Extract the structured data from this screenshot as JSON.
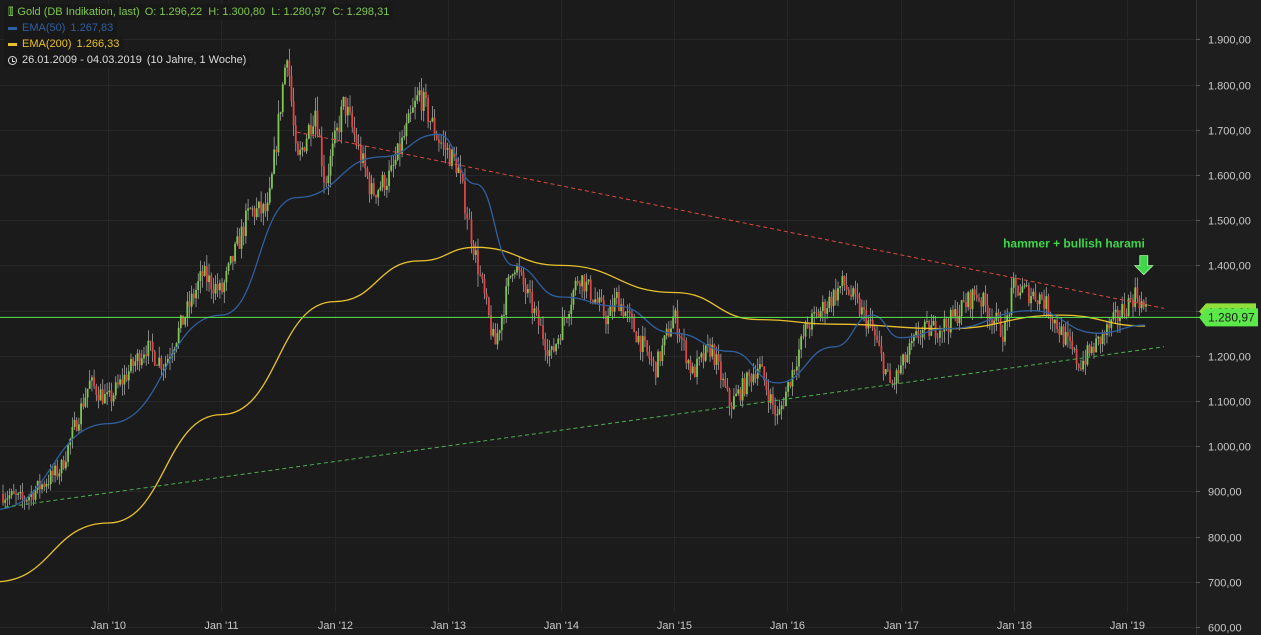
{
  "legend": {
    "instrument": "Gold (DB Indikation, last)",
    "ohlc": "O: 1.296,22  H: 1.300,80  L: 1.280,97  C: 1.298,31",
    "ema50_label": "EMA(50)",
    "ema50_value": "1.267,83",
    "ema200_label": "EMA(200)",
    "ema200_value": "1.266,33",
    "range": "26.01.2009 - 04.03.2019",
    "range_detail": "(10 Jahre, 1 Woche)"
  },
  "price_tag": "1.280,97",
  "price_tag_behind": "1.298,31",
  "colors": {
    "background": "#1b1b1b",
    "grid": "#262626",
    "up": "#7ec850",
    "down": "#e04545",
    "ema50": "#2f5f9e",
    "ema200": "#e8c12c",
    "support_line": "#4caf50",
    "resistance_line": "#d84b3f",
    "horizontal_line": "#5de84a",
    "annotation": "#3fd64b",
    "axis_text": "#c8c8c8"
  },
  "chart_data": {
    "type": "candlestick",
    "y_axis": {
      "min": 600,
      "max": 1950,
      "ticks": [
        600,
        700,
        800,
        900,
        1000,
        1100,
        1200,
        1300,
        1400,
        1500,
        1600,
        1700,
        1800,
        1900
      ],
      "tick_labels": [
        "600,00",
        "700,00",
        "800,00",
        "900,00",
        "1.000,00",
        "1.100,00",
        "1.200,00",
        "1.300,00",
        "1.400,00",
        "1.500,00",
        "1.600,00",
        "1.700,00",
        "1.800,00",
        "1.900,00"
      ],
      "position": "right"
    },
    "x_axis": {
      "start": "2009-01-26",
      "end": "2019-03-04",
      "ticks": [
        "2010-01",
        "2011-01",
        "2012-01",
        "2013-01",
        "2014-01",
        "2015-01",
        "2016-01",
        "2017-01",
        "2018-01",
        "2019-01"
      ],
      "tick_labels": [
        "Jan '10",
        "Jan '11",
        "Jan '12",
        "Jan '13",
        "Jan '14",
        "Jan '15",
        "Jan '16",
        "Jan '17",
        "Jan '18",
        "Jan '19"
      ]
    },
    "price_path": [
      [
        "2009-01",
        900
      ],
      [
        "2009-04",
        880
      ],
      [
        "2009-08",
        950
      ],
      [
        "2009-11",
        1140
      ],
      [
        "2010-01",
        1100
      ],
      [
        "2010-05",
        1220
      ],
      [
        "2010-07",
        1180
      ],
      [
        "2010-11",
        1380
      ],
      [
        "2011-01",
        1340
      ],
      [
        "2011-04",
        1520
      ],
      [
        "2011-06",
        1520
      ],
      [
        "2011-08",
        1880
      ],
      [
        "2011-09",
        1620
      ],
      [
        "2011-11",
        1750
      ],
      [
        "2011-12",
        1580
      ],
      [
        "2012-02",
        1760
      ],
      [
        "2012-05",
        1560
      ],
      [
        "2012-07",
        1600
      ],
      [
        "2012-10",
        1780
      ],
      [
        "2012-12",
        1680
      ],
      [
        "2013-02",
        1620
      ],
      [
        "2013-04",
        1420
      ],
      [
        "2013-06",
        1220
      ],
      [
        "2013-08",
        1410
      ],
      [
        "2013-12",
        1200
      ],
      [
        "2014-03",
        1380
      ],
      [
        "2014-06",
        1280
      ],
      [
        "2014-07",
        1330
      ],
      [
        "2014-11",
        1170
      ],
      [
        "2015-01",
        1290
      ],
      [
        "2015-03",
        1160
      ],
      [
        "2015-05",
        1220
      ],
      [
        "2015-07",
        1090
      ],
      [
        "2015-10",
        1180
      ],
      [
        "2015-12",
        1060
      ],
      [
        "2016-03",
        1260
      ],
      [
        "2016-07",
        1360
      ],
      [
        "2016-10",
        1260
      ],
      [
        "2016-12",
        1130
      ],
      [
        "2017-03",
        1250
      ],
      [
        "2017-06",
        1270
      ],
      [
        "2017-09",
        1340
      ],
      [
        "2017-12",
        1250
      ],
      [
        "2018-01",
        1350
      ],
      [
        "2018-04",
        1330
      ],
      [
        "2018-08",
        1180
      ],
      [
        "2018-10",
        1230
      ],
      [
        "2019-02",
        1340
      ],
      [
        "2019-03",
        1298
      ]
    ],
    "ema50_path": [
      [
        "2009-01",
        860
      ],
      [
        "2010-01",
        1050
      ],
      [
        "2011-01",
        1290
      ],
      [
        "2011-09",
        1550
      ],
      [
        "2012-06",
        1640
      ],
      [
        "2012-12",
        1690
      ],
      [
        "2013-04",
        1580
      ],
      [
        "2013-08",
        1400
      ],
      [
        "2014-01",
        1330
      ],
      [
        "2014-07",
        1310
      ],
      [
        "2015-01",
        1250
      ],
      [
        "2015-07",
        1210
      ],
      [
        "2015-12",
        1140
      ],
      [
        "2016-06",
        1220
      ],
      [
        "2016-10",
        1290
      ],
      [
        "2017-01",
        1240
      ],
      [
        "2017-06",
        1260
      ],
      [
        "2018-03",
        1300
      ],
      [
        "2018-10",
        1250
      ],
      [
        "2019-03",
        1268
      ]
    ],
    "ema200_path": [
      [
        "2009-01",
        700
      ],
      [
        "2010-01",
        830
      ],
      [
        "2011-01",
        1070
      ],
      [
        "2012-01",
        1320
      ],
      [
        "2012-10",
        1410
      ],
      [
        "2013-04",
        1440
      ],
      [
        "2014-01",
        1400
      ],
      [
        "2015-01",
        1340
      ],
      [
        "2015-10",
        1280
      ],
      [
        "2016-06",
        1270
      ],
      [
        "2017-06",
        1260
      ],
      [
        "2018-06",
        1290
      ],
      [
        "2019-03",
        1266
      ]
    ],
    "support_trendline": [
      [
        "2009-02",
        865
      ],
      [
        "2019-05",
        1220
      ]
    ],
    "resistance_trendline": [
      [
        "2011-09",
        1695
      ],
      [
        "2019-05",
        1305
      ]
    ],
    "horizontal_line": 1285,
    "last_close": 1298.31,
    "annotations": [
      {
        "text": "hammer + bullish harami",
        "anchor": [
          "2019-01",
          1395
        ],
        "marker": "down-arrow"
      }
    ]
  }
}
